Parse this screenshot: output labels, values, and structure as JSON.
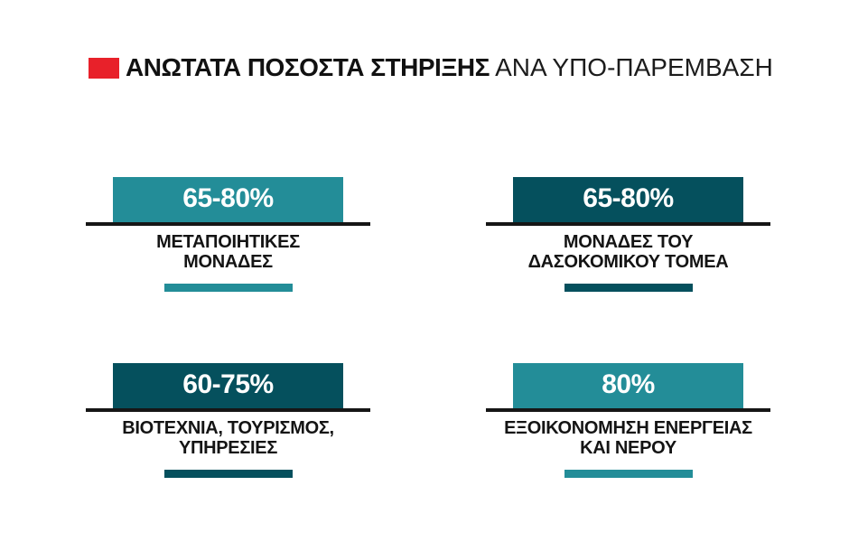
{
  "header": {
    "title_strong": "ΑΝΩΤΑΤΑ ΠΟΣΟΣΤΑ ΣΤΗΡΙΞΗΣ",
    "title_rest": " ΑΝΑ ΥΠΟ-ΠΑΡΕΜΒΑΣΗ",
    "marker_tone": "red"
  },
  "colors": {
    "teal": "#238d98",
    "dark": "#05505d",
    "red": "#e8212a",
    "rule": "#161616",
    "text": "#141414"
  },
  "blocks": [
    {
      "value": "65-80%",
      "label_lines": [
        "ΜΕΤΑΠΟΙΗΤΙΚΕΣ",
        "ΜΟΝΑΔΕΣ"
      ],
      "tone": "teal"
    },
    {
      "value": "65-80%",
      "label_lines": [
        "ΜΟΝΑΔΕΣ ΤΟΥ",
        "ΔΑΣΟΚΟΜΙΚΟΥ ΤΟΜΕΑ"
      ],
      "tone": "dark"
    },
    {
      "value": "60-75%",
      "label_lines": [
        "ΒΙΟΤΕΧΝΙΑ, ΤΟΥΡΙΣΜΟΣ,",
        "ΥΠΗΡΕΣΙΕΣ"
      ],
      "tone": "dark"
    },
    {
      "value": "80%",
      "label_lines": [
        "ΕΞΟΙΚΟΝΟΜΗΣΗ ΕΝΕΡΓΕΙΑΣ",
        "ΚΑΙ ΝΕΡΟΥ"
      ],
      "tone": "teal"
    }
  ],
  "chart_data": {
    "type": "table",
    "title": "ΑΝΩΤΑΤΑ ΠΟΣΟΣΤΑ ΣΤΗΡΙΞΗΣ ΑΝΑ ΥΠΟ-ΠΑΡΕΜΒΑΣΗ",
    "categories": [
      "ΜΕΤΑΠΟΙΗΤΙΚΕΣ ΜΟΝΑΔΕΣ",
      "ΜΟΝΑΔΕΣ ΤΟΥ ΔΑΣΟΚΟΜΙΚΟΥ ΤΟΜΕΑ",
      "ΒΙΟΤΕΧΝΙΑ, ΤΟΥΡΙΣΜΟΣ, ΥΠΗΡΕΣΙΕΣ",
      "ΕΞΟΙΚΟΝΟΜΗΣΗ ΕΝΕΡΓΕΙΑΣ ΚΑΙ ΝΕΡΟΥ"
    ],
    "values": [
      "65-80%",
      "65-80%",
      "60-75%",
      "80%"
    ],
    "ranges_pct": [
      [
        65,
        80
      ],
      [
        65,
        80
      ],
      [
        60,
        75
      ],
      [
        80,
        80
      ]
    ],
    "legend_position": "none",
    "grid": false
  }
}
